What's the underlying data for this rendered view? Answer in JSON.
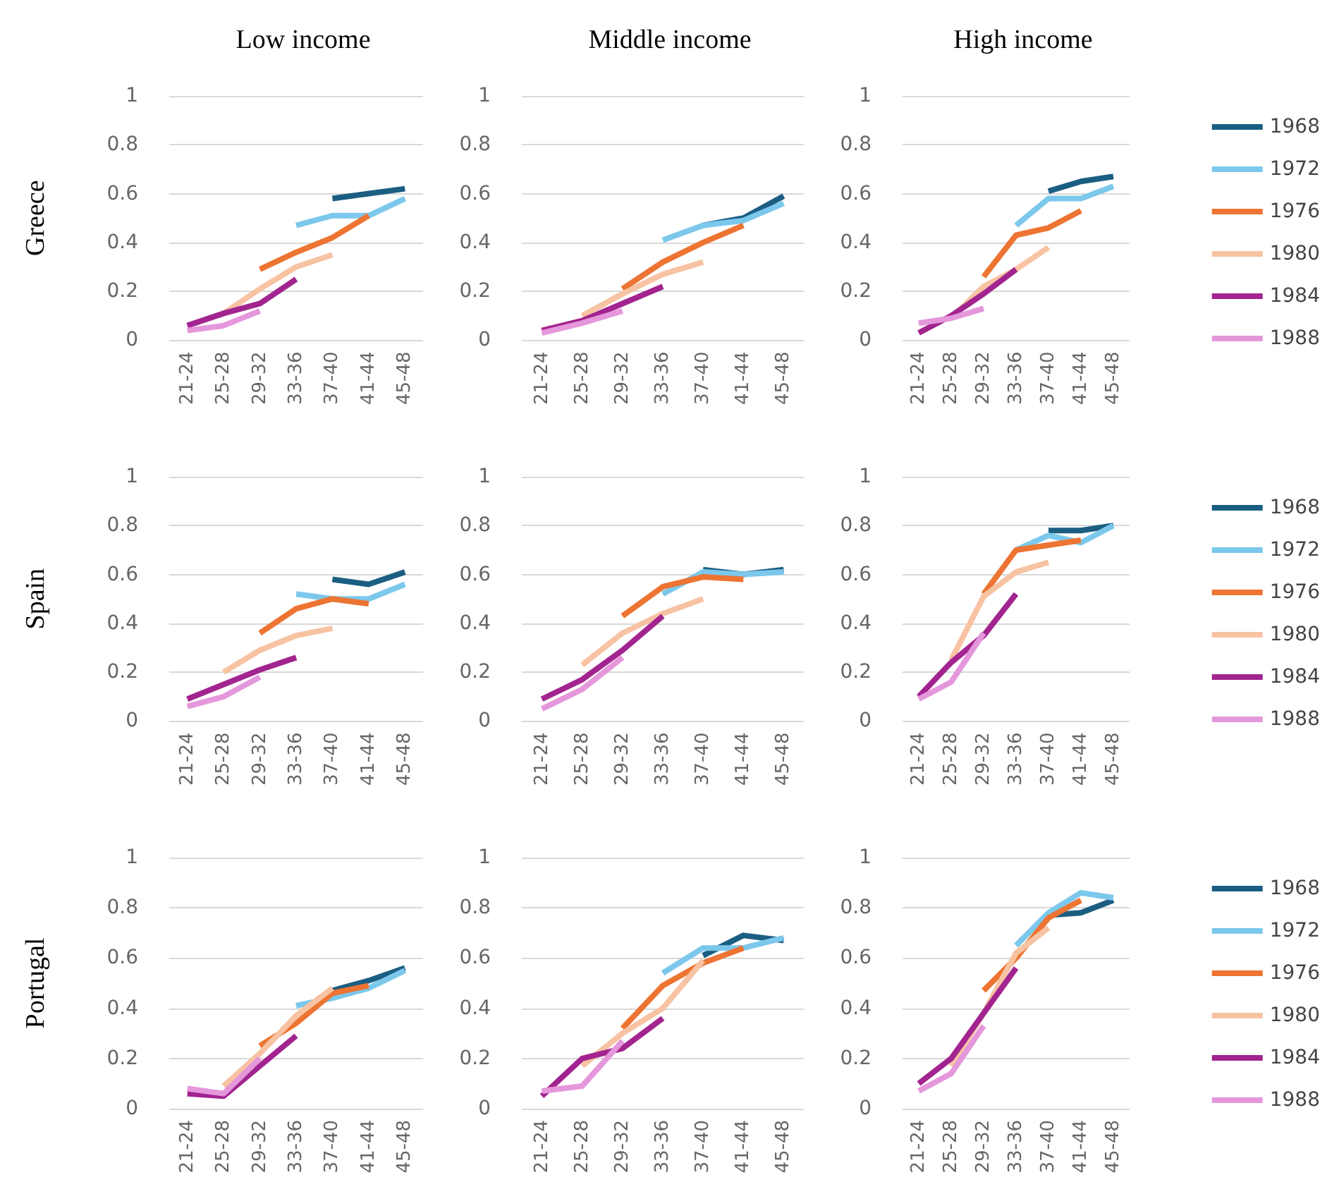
{
  "chart_data": [
    {
      "type": "line",
      "title": "Low income",
      "ylabel": "Greece",
      "categories": [
        "21-24",
        "25-28",
        "29-32",
        "33-36",
        "37-40",
        "41-44",
        "45-48"
      ],
      "ylim": [
        0,
        1
      ],
      "yticks": [
        0,
        0.2,
        0.4,
        0.6,
        0.8,
        1
      ],
      "grid": "y",
      "legend": false,
      "marker": "none",
      "line_style": "solid",
      "series": [
        {
          "color": "#1b5e82",
          "values": [
            null,
            null,
            null,
            null,
            0.58,
            0.6,
            0.62
          ]
        },
        {
          "color": "#7cc8ec",
          "values": [
            null,
            null,
            null,
            0.47,
            0.51,
            0.51,
            0.58
          ]
        },
        {
          "color": "#ed7432",
          "values": [
            null,
            null,
            0.29,
            0.36,
            0.42,
            0.51,
            null
          ]
        },
        {
          "color": "#f7c3a3",
          "values": [
            null,
            0.11,
            0.21,
            0.3,
            0.35,
            null,
            null
          ]
        },
        {
          "color": "#a2248f",
          "values": [
            0.06,
            0.11,
            0.15,
            0.25,
            null,
            null,
            null
          ]
        },
        {
          "color": "#e597dc",
          "values": [
            0.04,
            0.06,
            0.12,
            null,
            null,
            null,
            null
          ]
        }
      ]
    },
    {
      "type": "line",
      "title": "Middle income",
      "categories": [
        "21-24",
        "25-28",
        "29-32",
        "33-36",
        "37-40",
        "41-44",
        "45-48"
      ],
      "ylim": [
        0,
        1
      ],
      "yticks": [
        0,
        0.2,
        0.4,
        0.6,
        0.8,
        1
      ],
      "grid": "y",
      "legend": false,
      "marker": "none",
      "line_style": "solid",
      "series": [
        {
          "color": "#1b5e82",
          "values": [
            null,
            null,
            null,
            null,
            0.47,
            0.5,
            0.59
          ]
        },
        {
          "color": "#7cc8ec",
          "values": [
            null,
            null,
            null,
            0.41,
            0.47,
            0.49,
            0.56
          ]
        },
        {
          "color": "#ed7432",
          "values": [
            null,
            null,
            0.21,
            0.32,
            0.4,
            0.47,
            null
          ]
        },
        {
          "color": "#f7c3a3",
          "values": [
            null,
            0.1,
            0.19,
            0.27,
            0.32,
            null,
            null
          ]
        },
        {
          "color": "#a2248f",
          "values": [
            0.04,
            0.08,
            0.15,
            0.22,
            null,
            null,
            null
          ]
        },
        {
          "color": "#e597dc",
          "values": [
            0.03,
            0.07,
            0.12,
            null,
            null,
            null,
            null
          ]
        }
      ]
    },
    {
      "type": "line",
      "title": "High income",
      "categories": [
        "21-24",
        "25-28",
        "29-32",
        "33-36",
        "37-40",
        "41-44",
        "45-48"
      ],
      "ylim": [
        0,
        1
      ],
      "yticks": [
        0,
        0.2,
        0.4,
        0.6,
        0.8,
        1
      ],
      "grid": "y",
      "legend": "right",
      "marker": "none",
      "line_style": "solid",
      "series": [
        {
          "name": "1968",
          "color": "#1b5e82",
          "values": [
            null,
            null,
            null,
            null,
            0.61,
            0.65,
            0.67
          ]
        },
        {
          "name": "1972",
          "color": "#7cc8ec",
          "values": [
            null,
            null,
            null,
            0.47,
            0.58,
            0.58,
            0.63
          ]
        },
        {
          "name": "1976",
          "color": "#ed7432",
          "values": [
            null,
            null,
            0.26,
            0.43,
            0.46,
            0.53,
            null
          ]
        },
        {
          "name": "1980",
          "color": "#f7c3a3",
          "values": [
            null,
            0.09,
            0.22,
            0.29,
            0.38,
            null,
            null
          ]
        },
        {
          "name": "1984",
          "color": "#a2248f",
          "values": [
            0.03,
            0.1,
            0.19,
            0.29,
            null,
            null,
            null
          ]
        },
        {
          "name": "1988",
          "color": "#e597dc",
          "values": [
            0.07,
            0.09,
            0.13,
            null,
            null,
            null,
            null
          ]
        }
      ]
    },
    {
      "type": "line",
      "ylabel": "Spain",
      "categories": [
        "21-24",
        "25-28",
        "29-32",
        "33-36",
        "37-40",
        "41-44",
        "45-48"
      ],
      "ylim": [
        0,
        1
      ],
      "yticks": [
        0,
        0.2,
        0.4,
        0.6,
        0.8,
        1
      ],
      "grid": "y",
      "legend": false,
      "marker": "none",
      "line_style": "solid",
      "series": [
        {
          "color": "#1b5e82",
          "values": [
            null,
            null,
            null,
            null,
            0.58,
            0.56,
            0.61
          ]
        },
        {
          "color": "#7cc8ec",
          "values": [
            null,
            null,
            null,
            0.52,
            0.5,
            0.5,
            0.56
          ]
        },
        {
          "color": "#ed7432",
          "values": [
            null,
            null,
            0.36,
            0.46,
            0.5,
            0.48,
            null
          ]
        },
        {
          "color": "#f7c3a3",
          "values": [
            null,
            0.2,
            0.29,
            0.35,
            0.38,
            null,
            null
          ]
        },
        {
          "color": "#a2248f",
          "values": [
            0.09,
            0.15,
            0.21,
            0.26,
            null,
            null,
            null
          ]
        },
        {
          "color": "#e597dc",
          "values": [
            0.06,
            0.1,
            0.18,
            null,
            null,
            null,
            null
          ]
        }
      ]
    },
    {
      "type": "line",
      "categories": [
        "21-24",
        "25-28",
        "29-32",
        "33-36",
        "37-40",
        "41-44",
        "45-48"
      ],
      "ylim": [
        0,
        1
      ],
      "yticks": [
        0,
        0.2,
        0.4,
        0.6,
        0.8,
        1
      ],
      "grid": "y",
      "legend": false,
      "marker": "none",
      "line_style": "solid",
      "series": [
        {
          "color": "#1b5e82",
          "values": [
            null,
            null,
            null,
            null,
            0.62,
            0.6,
            0.62
          ]
        },
        {
          "color": "#7cc8ec",
          "values": [
            null,
            null,
            null,
            0.52,
            0.61,
            0.6,
            0.61
          ]
        },
        {
          "color": "#ed7432",
          "values": [
            null,
            null,
            0.43,
            0.55,
            0.59,
            0.58,
            null
          ]
        },
        {
          "color": "#f7c3a3",
          "values": [
            null,
            0.23,
            0.36,
            0.44,
            0.5,
            null,
            null
          ]
        },
        {
          "color": "#a2248f",
          "values": [
            0.09,
            0.17,
            0.29,
            0.43,
            null,
            null,
            null
          ]
        },
        {
          "color": "#e597dc",
          "values": [
            0.05,
            0.13,
            0.26,
            null,
            null,
            null,
            null
          ]
        }
      ]
    },
    {
      "type": "line",
      "categories": [
        "21-24",
        "25-28",
        "29-32",
        "33-36",
        "37-40",
        "41-44",
        "45-48"
      ],
      "ylim": [
        0,
        1
      ],
      "yticks": [
        0,
        0.2,
        0.4,
        0.6,
        0.8,
        1
      ],
      "grid": "y",
      "legend": "right",
      "marker": "none",
      "line_style": "solid",
      "series": [
        {
          "name": "1968",
          "color": "#1b5e82",
          "values": [
            null,
            null,
            null,
            null,
            0.78,
            0.78,
            0.8
          ]
        },
        {
          "name": "1972",
          "color": "#7cc8ec",
          "values": [
            null,
            null,
            null,
            0.7,
            0.76,
            0.73,
            0.8
          ]
        },
        {
          "name": "1976",
          "color": "#ed7432",
          "values": [
            null,
            null,
            0.52,
            0.7,
            0.72,
            0.74,
            null
          ]
        },
        {
          "name": "1980",
          "color": "#f7c3a3",
          "values": [
            null,
            0.25,
            0.51,
            0.61,
            0.65,
            null,
            null
          ]
        },
        {
          "name": "1984",
          "color": "#a2248f",
          "values": [
            0.1,
            0.24,
            0.35,
            0.52,
            null,
            null,
            null
          ]
        },
        {
          "name": "1988",
          "color": "#e597dc",
          "values": [
            0.09,
            0.16,
            0.36,
            null,
            null,
            null,
            null
          ]
        }
      ]
    },
    {
      "type": "line",
      "ylabel": "Portugal",
      "categories": [
        "21-24",
        "25-28",
        "29-32",
        "33-36",
        "37-40",
        "41-44",
        "45-48"
      ],
      "ylim": [
        0,
        1
      ],
      "yticks": [
        0,
        0.2,
        0.4,
        0.6,
        0.8,
        1
      ],
      "grid": "y",
      "legend": false,
      "marker": "none",
      "line_style": "solid",
      "series": [
        {
          "color": "#1b5e82",
          "values": [
            null,
            null,
            null,
            null,
            0.47,
            0.51,
            0.56
          ]
        },
        {
          "color": "#7cc8ec",
          "values": [
            null,
            null,
            null,
            0.41,
            0.44,
            0.48,
            0.55
          ]
        },
        {
          "color": "#ed7432",
          "values": [
            null,
            null,
            0.25,
            0.34,
            0.46,
            0.49,
            null
          ]
        },
        {
          "color": "#f7c3a3",
          "values": [
            null,
            0.09,
            0.22,
            0.37,
            0.48,
            null,
            null
          ]
        },
        {
          "color": "#a2248f",
          "values": [
            0.06,
            0.05,
            0.17,
            0.29,
            null,
            null,
            null
          ]
        },
        {
          "color": "#e597dc",
          "values": [
            0.08,
            0.06,
            0.2,
            null,
            null,
            null,
            null
          ]
        }
      ]
    },
    {
      "type": "line",
      "categories": [
        "21-24",
        "25-28",
        "29-32",
        "33-36",
        "37-40",
        "41-44",
        "45-48"
      ],
      "ylim": [
        0,
        1
      ],
      "yticks": [
        0,
        0.2,
        0.4,
        0.6,
        0.8,
        1
      ],
      "grid": "y",
      "legend": false,
      "marker": "none",
      "line_style": "solid",
      "series": [
        {
          "color": "#1b5e82",
          "values": [
            null,
            null,
            null,
            null,
            0.61,
            0.69,
            0.67
          ]
        },
        {
          "color": "#7cc8ec",
          "values": [
            null,
            null,
            null,
            0.54,
            0.64,
            0.64,
            0.68
          ]
        },
        {
          "color": "#ed7432",
          "values": [
            null,
            null,
            0.32,
            0.49,
            0.58,
            0.64,
            null
          ]
        },
        {
          "color": "#f7c3a3",
          "values": [
            null,
            0.17,
            0.3,
            0.4,
            0.59,
            null,
            null
          ]
        },
        {
          "color": "#a2248f",
          "values": [
            0.05,
            0.2,
            0.24,
            0.36,
            null,
            null,
            null
          ]
        },
        {
          "color": "#e597dc",
          "values": [
            0.07,
            0.09,
            0.27,
            null,
            null,
            null,
            null
          ]
        }
      ]
    },
    {
      "type": "line",
      "categories": [
        "21-24",
        "25-28",
        "29-32",
        "33-36",
        "37-40",
        "41-44",
        "45-48"
      ],
      "ylim": [
        0,
        1
      ],
      "yticks": [
        0,
        0.2,
        0.4,
        0.6,
        0.8,
        1
      ],
      "grid": "y",
      "legend": "right",
      "marker": "none",
      "line_style": "solid",
      "series": [
        {
          "name": "1968",
          "color": "#1b5e82",
          "values": [
            null,
            null,
            null,
            null,
            0.77,
            0.78,
            0.83
          ]
        },
        {
          "name": "1972",
          "color": "#7cc8ec",
          "values": [
            null,
            null,
            null,
            0.65,
            0.78,
            0.86,
            0.84
          ]
        },
        {
          "name": "1976",
          "color": "#ed7432",
          "values": [
            null,
            null,
            0.47,
            0.6,
            0.76,
            0.83,
            null
          ]
        },
        {
          "name": "1980",
          "color": "#f7c3a3",
          "values": [
            null,
            0.17,
            0.38,
            0.62,
            0.72,
            null,
            null
          ]
        },
        {
          "name": "1984",
          "color": "#a2248f",
          "values": [
            0.1,
            0.2,
            0.38,
            0.56,
            null,
            null,
            null
          ]
        },
        {
          "name": "1988",
          "color": "#e597dc",
          "values": [
            0.07,
            0.14,
            0.33,
            null,
            null,
            null,
            null
          ]
        }
      ]
    }
  ]
}
